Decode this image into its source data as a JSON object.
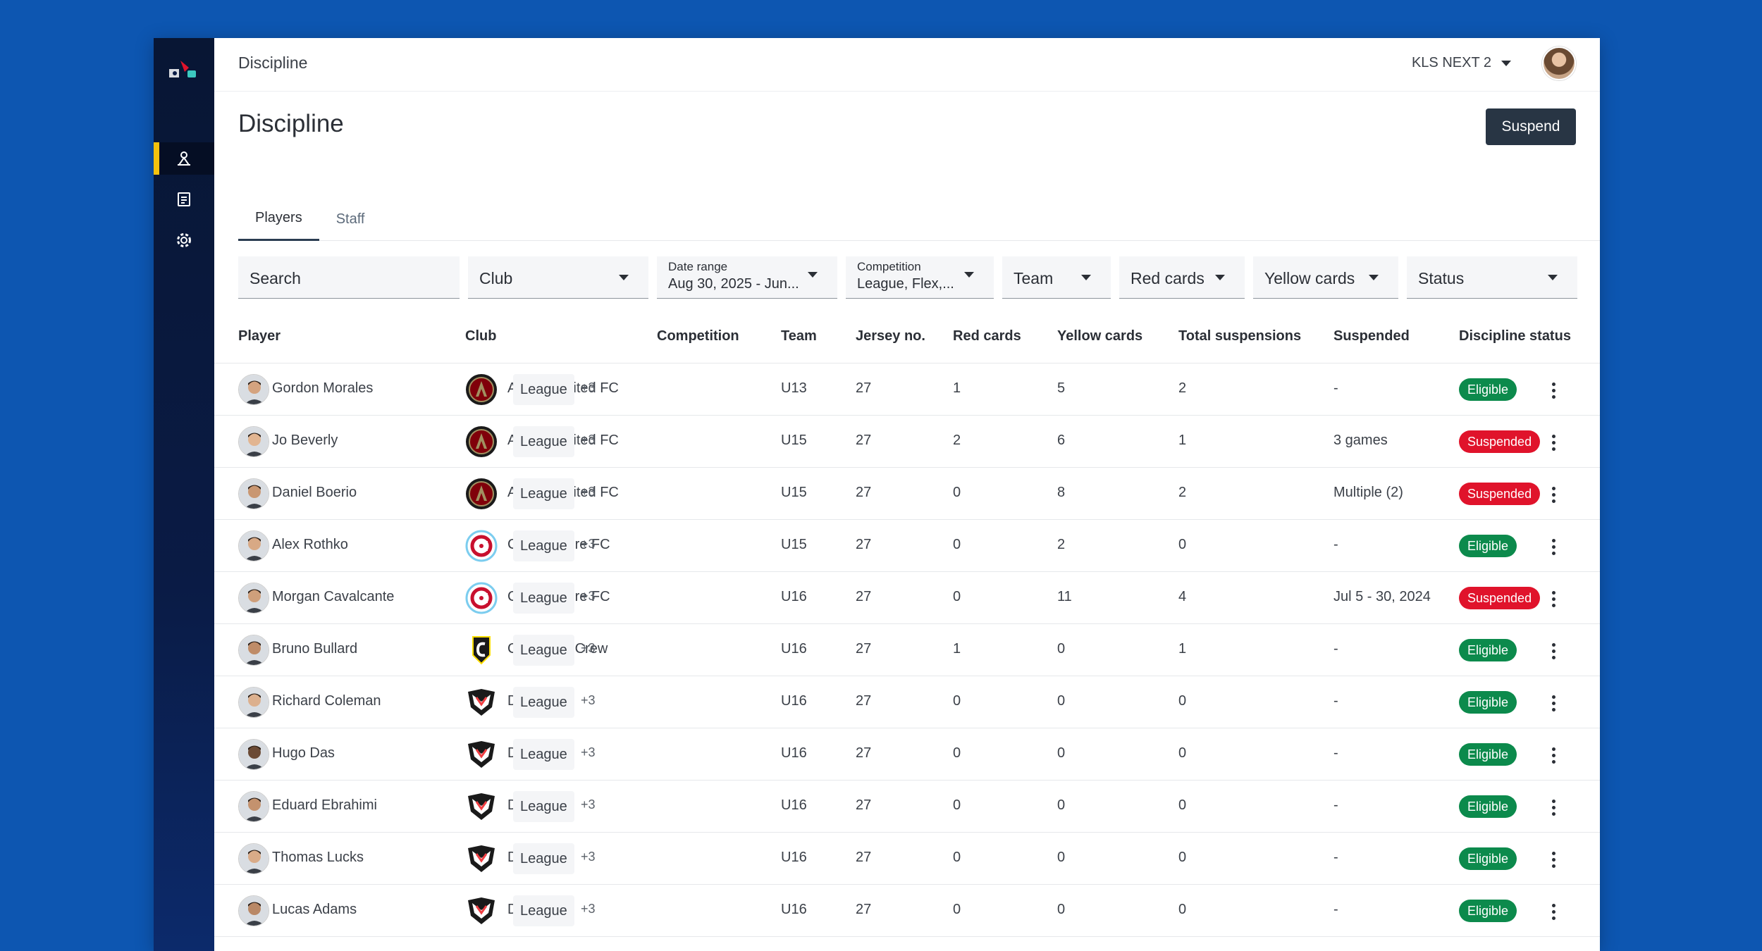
{
  "header": {
    "breadcrumb": "Discipline",
    "org_name": "KLS NEXT 2",
    "page_title": "Discipline",
    "suspend_label": "Suspend"
  },
  "sidebar": {
    "items": [
      {
        "name": "discipline",
        "icon": "whistle-icon",
        "active": true
      },
      {
        "name": "reports",
        "icon": "document-icon",
        "active": false
      },
      {
        "name": "settings",
        "icon": "gear-icon",
        "active": false
      }
    ]
  },
  "tabs": [
    {
      "label": "Players",
      "active": true
    },
    {
      "label": "Staff",
      "active": false
    }
  ],
  "filters": {
    "search_placeholder": "Search",
    "club": "Club",
    "date_range_label": "Date range",
    "date_range_value": "Aug 30, 2025 - Jun...",
    "competition_label": "Competition",
    "competition_value": "League, Flex,...",
    "team": "Team",
    "red_cards": "Red cards",
    "yellow_cards": "Yellow cards",
    "status": "Status"
  },
  "columns": {
    "player": "Player",
    "club": "Club",
    "competition": "Competition",
    "team": "Team",
    "jersey": "Jersey no.",
    "red": "Red cards",
    "yellow": "Yellow cards",
    "total": "Total suspensions",
    "suspended": "Suspended",
    "status": "Discipline status"
  },
  "colors": {
    "eligible": "#0c8a4c",
    "suspended": "#e0132b",
    "accent": "#f4c20d",
    "background": "#0d56b1"
  },
  "rows": [
    {
      "player": "Gordon Morales",
      "club": "Atlanta United FC",
      "club_logo": "atlanta",
      "competition": "League",
      "more": "+3",
      "team": "U13",
      "jersey": "27",
      "red": "1",
      "yellow": "5",
      "total": "2",
      "suspended": "-",
      "status": "Eligible",
      "status_type": "eligible"
    },
    {
      "player": "Jo Beverly",
      "club": "Atlanta United FC",
      "club_logo": "atlanta",
      "competition": "League",
      "more": "+3",
      "team": "U15",
      "jersey": "27",
      "red": "2",
      "yellow": "6",
      "total": "1",
      "suspended": "3 games",
      "status": "Suspended",
      "status_type": "suspended"
    },
    {
      "player": "Daniel Boerio",
      "club": "Atlanta United FC",
      "club_logo": "atlanta",
      "competition": "League",
      "more": "+3",
      "team": "U15",
      "jersey": "27",
      "red": "0",
      "yellow": "8",
      "total": "2",
      "suspended": "Multiple (2)",
      "status": "Suspended",
      "status_type": "suspended"
    },
    {
      "player": "Alex Rothko",
      "club": "Chicago Fire FC",
      "club_logo": "chicago",
      "competition": "League",
      "more": "+3",
      "team": "U15",
      "jersey": "27",
      "red": "0",
      "yellow": "2",
      "total": "0",
      "suspended": "-",
      "status": "Eligible",
      "status_type": "eligible"
    },
    {
      "player": "Morgan Cavalcante",
      "club": "Chicago Fire FC",
      "club_logo": "chicago",
      "competition": "League",
      "more": "+3",
      "team": "U16",
      "jersey": "27",
      "red": "0",
      "yellow": "11",
      "total": "4",
      "suspended": "Jul 5 - 30, 2024",
      "status": "Suspended",
      "status_type": "suspended"
    },
    {
      "player": "Bruno Bullard",
      "club": "Columbus Crew",
      "club_logo": "columbus",
      "competition": "League",
      "more": "+3",
      "team": "U16",
      "jersey": "27",
      "red": "1",
      "yellow": "0",
      "total": "1",
      "suspended": "-",
      "status": "Eligible",
      "status_type": "eligible"
    },
    {
      "player": "Richard Coleman",
      "club": "DC United",
      "club_logo": "dc",
      "competition": "League",
      "more": "+3",
      "team": "U16",
      "jersey": "27",
      "red": "0",
      "yellow": "0",
      "total": "0",
      "suspended": "-",
      "status": "Eligible",
      "status_type": "eligible"
    },
    {
      "player": "Hugo Das",
      "club": "DC United",
      "club_logo": "dc",
      "competition": "League",
      "more": "+3",
      "team": "U16",
      "jersey": "27",
      "red": "0",
      "yellow": "0",
      "total": "0",
      "suspended": "-",
      "status": "Eligible",
      "status_type": "eligible"
    },
    {
      "player": "Eduard Ebrahimi",
      "club": "DC United",
      "club_logo": "dc",
      "competition": "League",
      "more": "+3",
      "team": "U16",
      "jersey": "27",
      "red": "0",
      "yellow": "0",
      "total": "0",
      "suspended": "-",
      "status": "Eligible",
      "status_type": "eligible"
    },
    {
      "player": "Thomas Lucks",
      "club": "DC United",
      "club_logo": "dc",
      "competition": "League",
      "more": "+3",
      "team": "U16",
      "jersey": "27",
      "red": "0",
      "yellow": "0",
      "total": "0",
      "suspended": "-",
      "status": "Eligible",
      "status_type": "eligible"
    },
    {
      "player": "Lucas Adams",
      "club": "DC United",
      "club_logo": "dc",
      "competition": "League",
      "more": "+3",
      "team": "U16",
      "jersey": "27",
      "red": "0",
      "yellow": "0",
      "total": "0",
      "suspended": "-",
      "status": "Eligible",
      "status_type": "eligible"
    }
  ]
}
